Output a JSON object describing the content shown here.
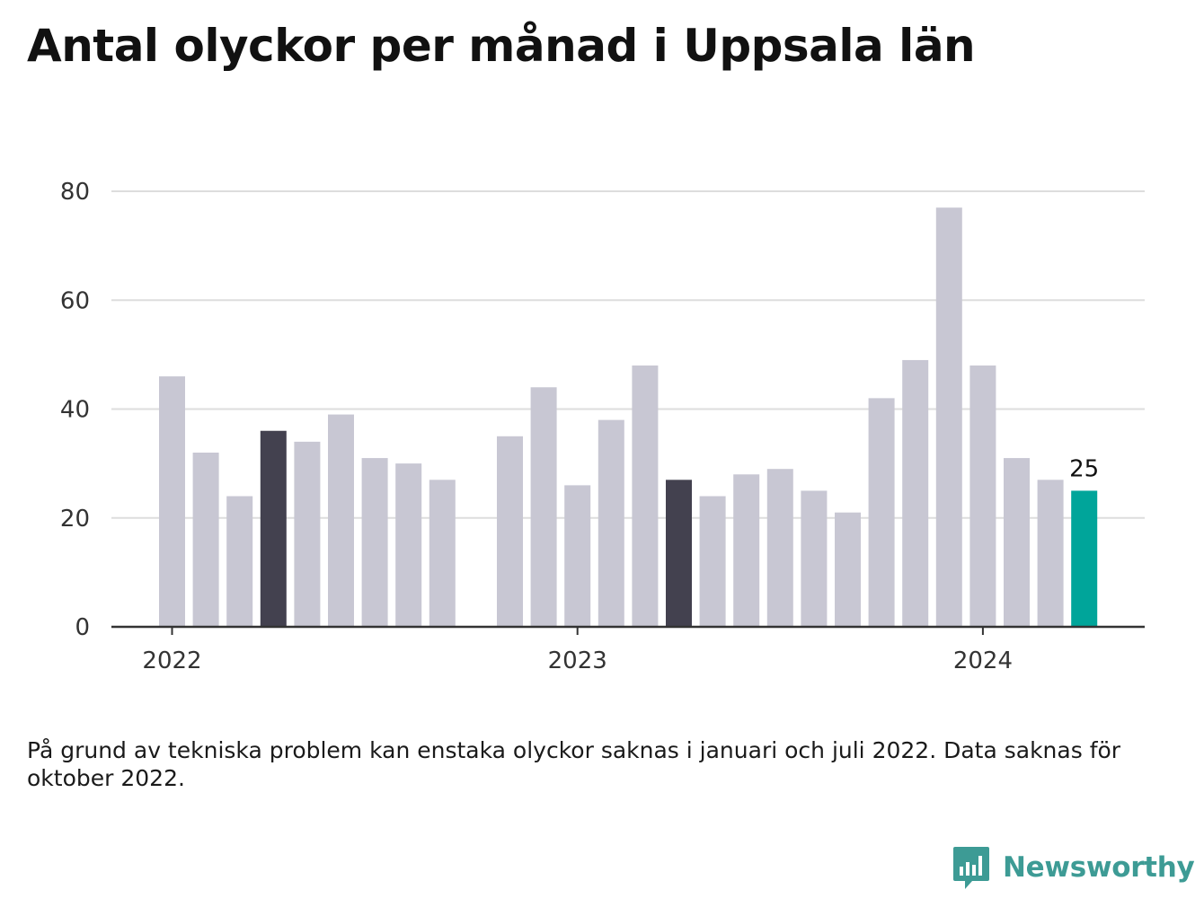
{
  "title": "Antal olyckor per månad i Uppsala län",
  "note": "På grund av tekniska problem kan enstaka olyckor saknas i januari och juli 2022. Data saknas för oktober 2022.",
  "brand": {
    "name": "Newsworthy",
    "icon": "newsworthy-logo-icon",
    "color": "#3d9b95"
  },
  "colors": {
    "default_bar": "#c8c7d3",
    "dark_bar": "#43414f",
    "highlight_bar": "#00a59a",
    "grid": "#dddddd",
    "axis": "#333333"
  },
  "chart_data": {
    "type": "bar",
    "title": "Antal olyckor per månad i Uppsala län",
    "xlabel": "",
    "ylabel": "",
    "ylim": [
      0,
      80
    ],
    "yticks": [
      0,
      20,
      40,
      60,
      80
    ],
    "xticks": [
      {
        "label": "2022",
        "month": "2022-01"
      },
      {
        "label": "2023",
        "month": "2023-01"
      },
      {
        "label": "2024",
        "month": "2024-01"
      }
    ],
    "grid": true,
    "legend": "none",
    "categories": [
      "2022-01",
      "2022-02",
      "2022-03",
      "2022-04",
      "2022-05",
      "2022-06",
      "2022-07",
      "2022-08",
      "2022-09",
      "2022-10",
      "2022-11",
      "2022-12",
      "2023-01",
      "2023-02",
      "2023-03",
      "2023-04",
      "2023-05",
      "2023-06",
      "2023-07",
      "2023-08",
      "2023-09",
      "2023-10",
      "2023-11",
      "2023-12",
      "2024-01",
      "2024-02",
      "2024-03",
      "2024-04"
    ],
    "values": [
      46,
      32,
      24,
      36,
      34,
      39,
      31,
      30,
      27,
      null,
      35,
      44,
      26,
      38,
      48,
      27,
      24,
      28,
      29,
      25,
      21,
      42,
      49,
      77,
      48,
      31,
      27,
      25
    ],
    "dark_months": [
      "2022-04",
      "2023-04"
    ],
    "highlight_month": "2024-04",
    "value_labels": [
      {
        "month": "2024-04",
        "text": "25"
      }
    ]
  }
}
